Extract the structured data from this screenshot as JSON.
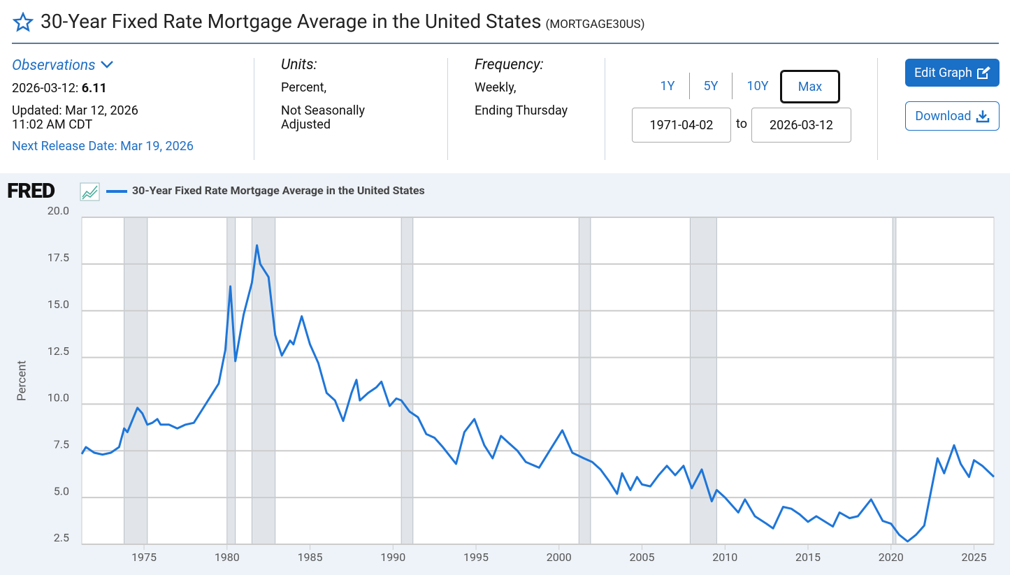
{
  "header": {
    "title": "30-Year Fixed Rate Mortgage Average in the United States",
    "series_id": "(MORTGAGE30US)"
  },
  "info": {
    "observations_label": "Observations",
    "obs_date": "2026-03-12:",
    "obs_value": "6.11",
    "updated": "Updated: Mar 12, 2026",
    "updated_time": "11:02 AM CDT",
    "next_release": "Next Release Date: Mar 19, 2026",
    "units_label": "Units:",
    "units_1": "Percent,",
    "units_2": "Not Seasonally Adjusted",
    "frequency_label": "Frequency:",
    "frequency_1": "Weekly,",
    "frequency_2": "Ending Thursday"
  },
  "controls": {
    "ranges": [
      "1Y",
      "5Y",
      "10Y",
      "Max"
    ],
    "start_date": "1971-04-02",
    "to": "to",
    "end_date": "2026-03-12",
    "edit_graph": "Edit Graph",
    "download": "Download"
  },
  "chart_data": {
    "type": "line",
    "brand": "FRED",
    "ylabel": "Percent",
    "grid": true,
    "series": [
      {
        "name": "30-Year Fixed Rate Mortgage Average in the United States",
        "color": "#1e76d9",
        "values": [
          7.33,
          7.7,
          7.4,
          7.3,
          7.4,
          7.7,
          8.7,
          8.5,
          9.8,
          9.5,
          8.9,
          9.0,
          9.2,
          8.9,
          8.9,
          8.7,
          8.9,
          9.0,
          9.7,
          10.4,
          11.1,
          12.9,
          16.3,
          12.3,
          13.8,
          14.8,
          16.5,
          18.5,
          17.5,
          16.8,
          13.7,
          12.6,
          13.4,
          13.2,
          14.7,
          13.2,
          12.2,
          10.6,
          10.2,
          9.1,
          10.6,
          11.3,
          10.2,
          10.6,
          10.9,
          11.2,
          9.9,
          10.3,
          10.2,
          9.6,
          9.3,
          8.4,
          8.2,
          7.7,
          6.8,
          8.5,
          9.2,
          7.8,
          7.1,
          8.3,
          7.9,
          7.5,
          6.9,
          6.6,
          7.6,
          8.6,
          7.4,
          7.1,
          6.9,
          6.5,
          5.9,
          5.2,
          6.3,
          5.4,
          6.1,
          5.7,
          5.6,
          6.2,
          6.7,
          6.2,
          6.7,
          5.5,
          6.5,
          4.8,
          5.4,
          5.0,
          4.2,
          4.9,
          4.0,
          3.6,
          3.35,
          4.5,
          4.4,
          4.1,
          3.7,
          4.0,
          3.45,
          4.2,
          3.9,
          4.0,
          4.9,
          3.75,
          3.6,
          3.0,
          2.65,
          3.0,
          3.5,
          5.3,
          7.1,
          6.3,
          7.8,
          6.8,
          6.1,
          7.0,
          6.7,
          6.11
        ]
      }
    ],
    "x": [
      1971.25,
      1971.5,
      1972,
      1972.5,
      1973,
      1973.5,
      1973.8,
      1974,
      1974.6,
      1974.9,
      1975.2,
      1975.5,
      1975.8,
      1976,
      1976.5,
      1977,
      1977.5,
      1978,
      1978.5,
      1979,
      1979.5,
      1979.9,
      1980.2,
      1980.5,
      1980.8,
      1981,
      1981.5,
      1981.8,
      1982,
      1982.5,
      1982.9,
      1983.3,
      1983.8,
      1984,
      1984.5,
      1985,
      1985.5,
      1986,
      1986.5,
      1987,
      1987.5,
      1987.8,
      1988,
      1988.5,
      1989,
      1989.3,
      1989.8,
      1990.2,
      1990.5,
      1991,
      1991.5,
      1992,
      1992.5,
      1993,
      1993.8,
      1994.3,
      1994.9,
      1995.5,
      1996,
      1996.5,
      1997,
      1997.5,
      1998,
      1998.8,
      1999.5,
      2000.2,
      2000.8,
      2001.5,
      2002,
      2002.5,
      2003,
      2003.5,
      2003.8,
      2004.3,
      2004.7,
      2005,
      2005.5,
      2006,
      2006.5,
      2007,
      2007.5,
      2008,
      2008.6,
      2009.2,
      2009.5,
      2010,
      2010.8,
      2011.2,
      2011.8,
      2012.5,
      2012.9,
      2013.5,
      2014,
      2014.5,
      2015,
      2015.5,
      2016.5,
      2016.9,
      2017.5,
      2018,
      2018.8,
      2019.5,
      2020,
      2020.5,
      2021,
      2021.5,
      2022,
      2022.4,
      2022.8,
      2023.2,
      2023.8,
      2024.2,
      2024.7,
      2025,
      2025.5,
      2026.2
    ],
    "recessions": [
      [
        1973.8,
        1975.2
      ],
      [
        1980.0,
        1980.5
      ],
      [
        1981.5,
        1982.9
      ],
      [
        1990.5,
        1991.2
      ],
      [
        2001.2,
        2001.9
      ],
      [
        2007.9,
        2009.5
      ],
      [
        2020.1,
        2020.3
      ]
    ],
    "recession_color": "#e1e5ea",
    "xlim": [
      1971.25,
      2026.2
    ],
    "ylim": [
      2.5,
      20
    ],
    "xticks": [
      1975,
      1980,
      1985,
      1990,
      1995,
      2000,
      2005,
      2010,
      2015,
      2020,
      2025
    ],
    "yticks": [
      {
        "value": 20,
        "label": "20.0"
      },
      17.5,
      {
        "value": 15,
        "label": "15.0"
      },
      12.5,
      {
        "value": 10,
        "label": "10.0"
      },
      7.5,
      {
        "value": 5,
        "label": "5.0"
      },
      2.5
    ]
  }
}
